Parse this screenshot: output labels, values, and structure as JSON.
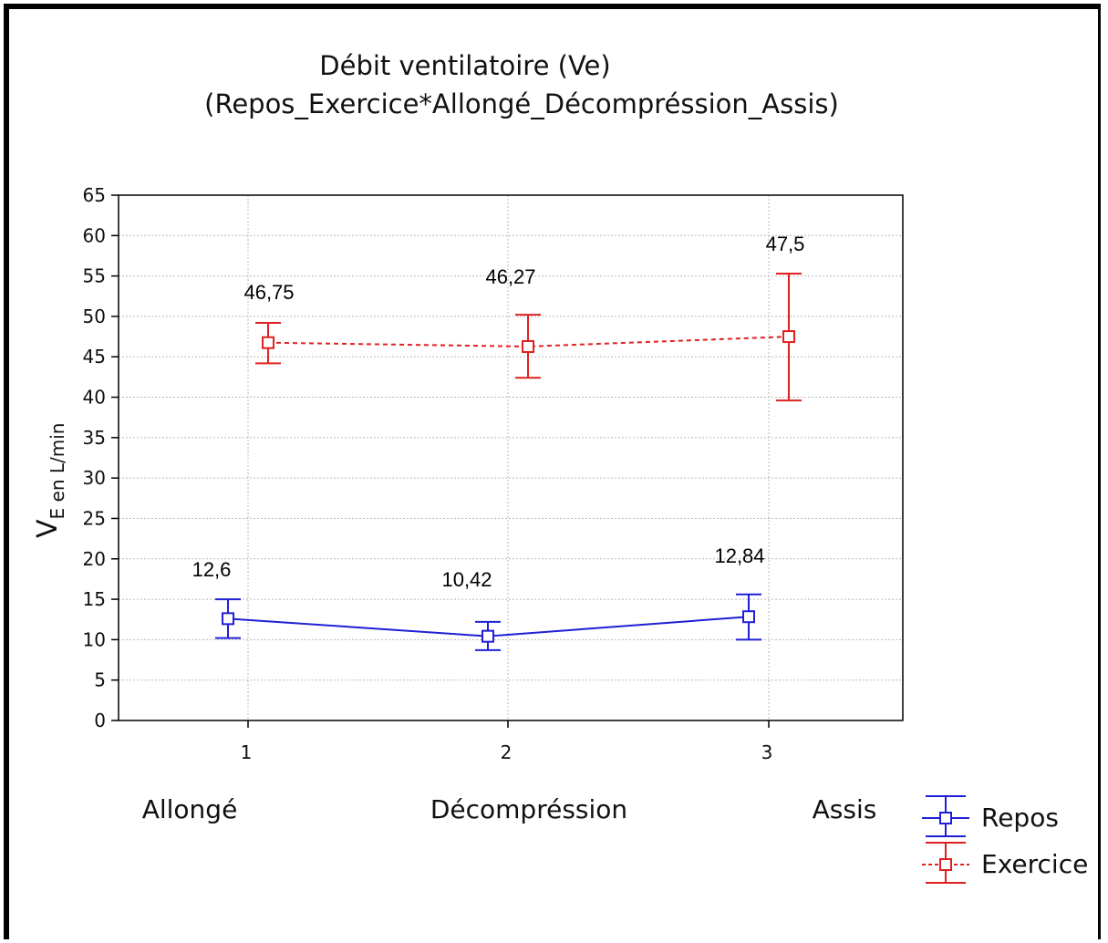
{
  "chart_data": {
    "type": "line",
    "title": "Débit ventilatoire (Ve)",
    "subtitle": "(Repos_Exercice*Allongé_Décompréssion_Assis)",
    "ylabel_main": "V",
    "ylabel_sub": "E en L/min",
    "x": [
      1,
      2,
      3
    ],
    "x_tick_labels": [
      "1",
      "2",
      "3"
    ],
    "categories": [
      "Allongé",
      "Décompréssion",
      "Assis"
    ],
    "ylim": [
      0,
      65
    ],
    "y_ticks": [
      0,
      5,
      10,
      15,
      20,
      25,
      30,
      35,
      40,
      45,
      50,
      55,
      60,
      65
    ],
    "grid": true,
    "legend_position": "bottom-right",
    "series": [
      {
        "name": "Repos",
        "color": "#1f1fd6",
        "line_style": "solid",
        "marker": "square",
        "values": [
          12.6,
          10.42,
          12.84
        ],
        "error_low": [
          10.2,
          8.7,
          10.0
        ],
        "error_high": [
          15.0,
          12.2,
          15.6
        ],
        "labels": [
          "12,6",
          "10,42",
          "12,84"
        ]
      },
      {
        "name": "Exercice",
        "color": "#e02020",
        "line_style": "dashed",
        "marker": "square",
        "values": [
          46.75,
          46.27,
          47.5
        ],
        "error_low": [
          44.2,
          42.4,
          39.6
        ],
        "error_high": [
          49.2,
          50.2,
          55.3
        ],
        "labels": [
          "46,75",
          "46,27",
          "47,5"
        ]
      }
    ]
  }
}
